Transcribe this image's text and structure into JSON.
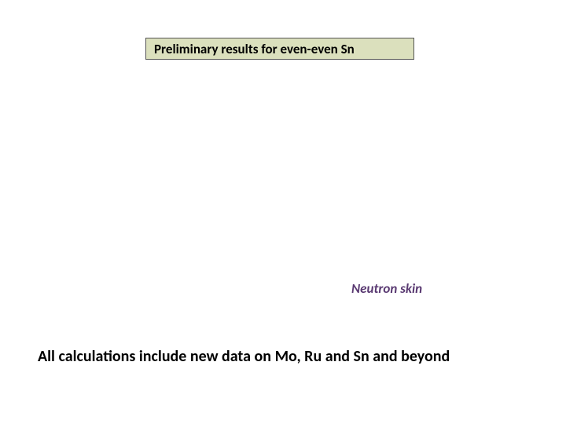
{
  "title": {
    "text": "Preliminary results for even-even Sn",
    "background_color": "#dbe0bd",
    "border_color": "#555555",
    "font_size": 17,
    "font_weight": "bold",
    "text_color": "#000000"
  },
  "label": {
    "text": "Neutron skin",
    "font_size": 17,
    "font_weight": "bold",
    "font_style": "italic",
    "text_color": "#5a3a72"
  },
  "footer": {
    "text": "All calculations include new data on Mo, Ru and Sn and beyond",
    "font_size": 20,
    "font_weight": "bold",
    "text_color": "#000000"
  },
  "background_color": "#ffffff"
}
